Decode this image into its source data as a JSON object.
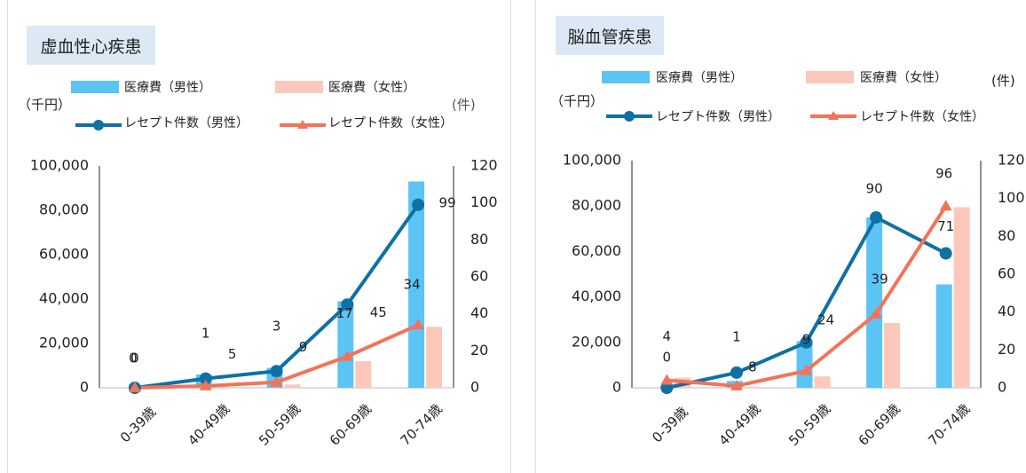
{
  "colors": {
    "male_bar": "#5bc4f5",
    "female_bar": "#fcc8bc",
    "male_line": "#0f70a4",
    "female_line": "#f47358",
    "title_bg": "#dce9f5",
    "axis": "#222222"
  },
  "chart_data": [
    {
      "type": "bar+line",
      "title": "虚血性心疾患",
      "left_unit": "（千円）",
      "right_unit": "(件)",
      "categories": [
        "0-39歳",
        "40-49歳",
        "50-59歳",
        "60-69歳",
        "70-74歳"
      ],
      "y_left_ticks": [
        "100,000",
        "80,000",
        "60,000",
        "40,000",
        "20,000",
        "0"
      ],
      "y_right_ticks": [
        "120",
        "100",
        "80",
        "60",
        "40",
        "20",
        "0"
      ],
      "ylim_left": [
        0,
        100000
      ],
      "ylim_right": [
        0,
        120
      ],
      "legend": {
        "male_cost": "医療費（男性）",
        "female_cost": "医療費（女性）",
        "male_count": "レセプト件数（男性）",
        "female_count": "レセプト件数（女性）"
      },
      "series": [
        {
          "name": "医療費（男性）",
          "kind": "bar",
          "axis": "left",
          "values": [
            0,
            6000,
            9000,
            39000,
            93000
          ]
        },
        {
          "name": "医療費（女性）",
          "kind": "bar",
          "axis": "left",
          "values": [
            0,
            500,
            1500,
            12000,
            27500
          ]
        },
        {
          "name": "レセプト件数（男性）",
          "kind": "line",
          "axis": "right",
          "values": [
            0,
            5,
            9,
            45,
            99
          ]
        },
        {
          "name": "レセプト件数（女性）",
          "kind": "line",
          "axis": "right",
          "values": [
            0,
            1,
            3,
            17,
            34
          ]
        }
      ],
      "data_labels": {
        "male_count": [
          "0",
          "5",
          "9",
          "45",
          "99"
        ],
        "female_count": [
          "0",
          "1",
          "3",
          "17",
          "34"
        ]
      }
    },
    {
      "type": "bar+line",
      "title": "脳血管疾患",
      "left_unit": "（千円）",
      "right_unit": "(件)",
      "categories": [
        "0-39歳",
        "40-49歳",
        "50-59歳",
        "60-69歳",
        "70-74歳"
      ],
      "y_left_ticks": [
        "100,000",
        "80,000",
        "60,000",
        "40,000",
        "20,000",
        "0"
      ],
      "y_right_ticks": [
        "120",
        "100",
        "80",
        "60",
        "40",
        "20",
        "0"
      ],
      "ylim_left": [
        0,
        100000
      ],
      "ylim_right": [
        0,
        120
      ],
      "legend": {
        "male_cost": "医療費（男性）",
        "female_cost": "医療費（女性）",
        "male_count": "レセプト件数（男性）",
        "female_count": "レセプト件数（女性）"
      },
      "series": [
        {
          "name": "医療費（男性）",
          "kind": "bar",
          "axis": "left",
          "values": [
            0,
            3000,
            20500,
            75000,
            45500
          ]
        },
        {
          "name": "医療費（女性）",
          "kind": "bar",
          "axis": "left",
          "values": [
            4500,
            500,
            5000,
            28500,
            79500
          ]
        },
        {
          "name": "レセプト件数（男性）",
          "kind": "line",
          "axis": "right",
          "values": [
            0,
            8,
            24,
            90,
            71
          ]
        },
        {
          "name": "レセプト件数（女性）",
          "kind": "line",
          "axis": "right",
          "values": [
            4,
            1,
            9,
            39,
            96
          ]
        }
      ],
      "data_labels": {
        "male_count": [
          "0",
          "8",
          "24",
          "90",
          "71"
        ],
        "female_count": [
          "4",
          "1",
          "9",
          "39",
          "96"
        ]
      }
    }
  ]
}
